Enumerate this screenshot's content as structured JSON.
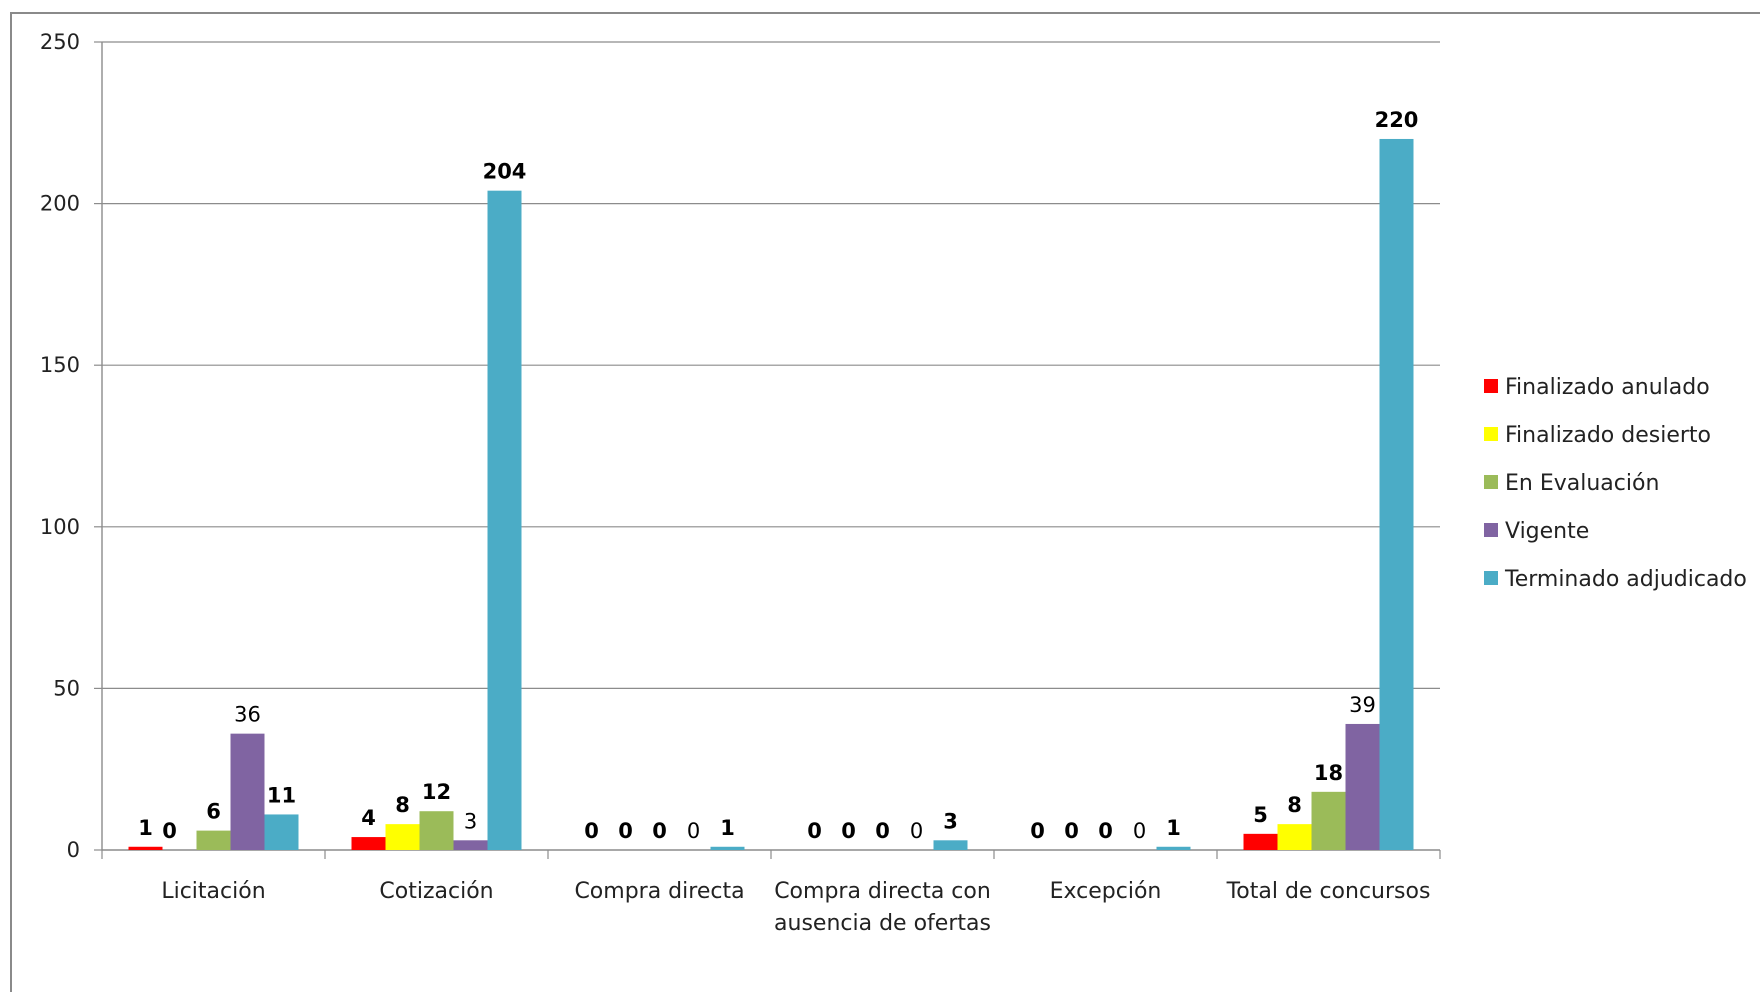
{
  "chart_data": {
    "type": "bar",
    "categories": [
      [
        "Licitación"
      ],
      [
        "Cotización"
      ],
      [
        "Compra directa"
      ],
      [
        "Compra directa con",
        "ausencia de ofertas"
      ],
      [
        "Excepción"
      ],
      [
        "Total de concursos"
      ]
    ],
    "series": [
      {
        "name": "Finalizado anulado",
        "color": "#FF0000",
        "values": [
          1,
          4,
          0,
          0,
          0,
          5
        ],
        "label_bold": [
          true,
          true,
          true,
          true,
          true,
          true
        ]
      },
      {
        "name": "Finalizado desierto",
        "color": "#FFFF00",
        "values": [
          0,
          8,
          0,
          0,
          0,
          8
        ],
        "label_bold": [
          true,
          true,
          true,
          true,
          true,
          true
        ]
      },
      {
        "name": "En Evaluación",
        "color": "#9BBB59",
        "values": [
          6,
          12,
          0,
          0,
          0,
          18
        ],
        "label_bold": [
          true,
          true,
          true,
          true,
          true,
          true
        ]
      },
      {
        "name": "Vigente",
        "color": "#8064A2",
        "values": [
          36,
          3,
          0,
          0,
          0,
          39
        ],
        "label_bold": [
          false,
          false,
          false,
          false,
          false,
          false
        ]
      },
      {
        "name": "Terminado adjudicado",
        "color": "#4BACC6",
        "values": [
          11,
          204,
          1,
          3,
          1,
          220
        ],
        "label_bold": [
          true,
          true,
          true,
          true,
          true,
          true
        ]
      }
    ],
    "ylim": [
      0,
      250
    ],
    "yticks": [
      0,
      50,
      100,
      150,
      200,
      250
    ],
    "grid": true,
    "legend_position": "right"
  }
}
